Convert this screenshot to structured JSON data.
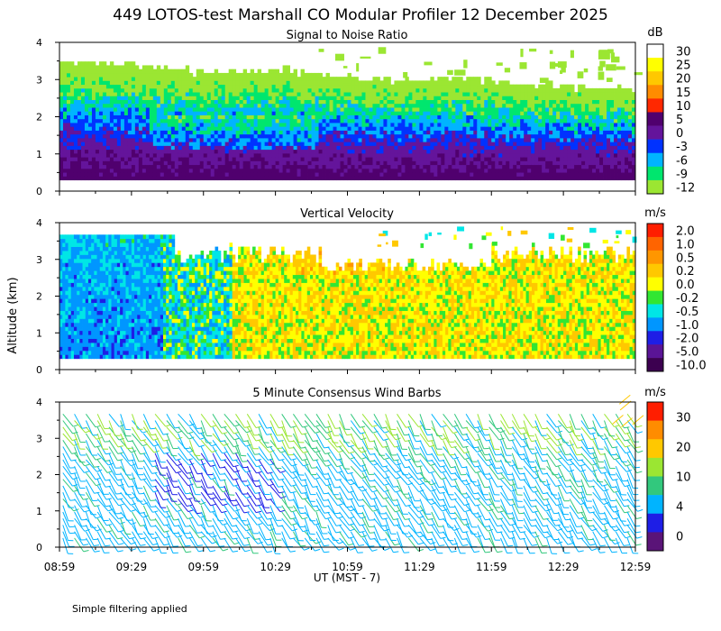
{
  "title": "449 LOTOS-test Marshall CO Modular Profiler 12 December 2025",
  "ylabel": "Altitude (km)",
  "xlabel": "UT  (MST - 7)",
  "footnote": "Simple filtering applied",
  "xticks": [
    "08:59",
    "09:29",
    "09:59",
    "10:29",
    "10:59",
    "11:29",
    "11:59",
    "12:29",
    "12:59"
  ],
  "yticks": [
    0,
    1,
    2,
    3,
    4
  ],
  "colors": {
    "background": "#ffffff",
    "axis": "#000000"
  },
  "chart_data": [
    {
      "type": "heatmap",
      "title": "Signal to Noise Ratio",
      "colorbar": {
        "unit": "dB",
        "labels": [
          "30",
          "25",
          "20",
          "15",
          "10",
          "5",
          "0",
          "-3",
          "-6",
          "-9",
          "-12"
        ],
        "colors": [
          "#ffffff",
          "#ffff00",
          "#ffc800",
          "#ff8c00",
          "#ff2800",
          "#50006e",
          "#64149b",
          "#0032ff",
          "#00b4ff",
          "#00e66e",
          "#9be632"
        ]
      },
      "x_range": [
        "08:59",
        "12:59"
      ],
      "ylim": [
        0,
        4
      ]
    },
    {
      "type": "heatmap",
      "title": "Vertical Velocity",
      "colorbar": {
        "unit": "m/s",
        "labels": [
          "2.0",
          "1.0",
          "0.5",
          "0.2",
          "0.0",
          "-0.2",
          "-0.5",
          "-1.0",
          "-2.0",
          "-5.0",
          "-10.0"
        ],
        "colors": [
          "#ff1e00",
          "#ff6400",
          "#ff9600",
          "#ffc800",
          "#ffff00",
          "#32e632",
          "#00e6e6",
          "#0096ff",
          "#1e1ee6",
          "#5a1496",
          "#3c0050"
        ]
      },
      "x_range": [
        "08:59",
        "12:59"
      ],
      "ylim": [
        0,
        4
      ]
    },
    {
      "type": "scatter",
      "title": "5 Minute Consensus Wind Barbs",
      "colorbar": {
        "unit": "m/s",
        "labels": [
          "30",
          "20",
          "10",
          "4",
          "0"
        ],
        "colors": [
          "#ff1e00",
          "#ff8c00",
          "#ffc800",
          "#9be632",
          "#32c87d",
          "#00b4ff",
          "#1e1ee6",
          "#5a1478"
        ]
      },
      "x_range": [
        "08:59",
        "12:59"
      ],
      "ylim": [
        0,
        4
      ]
    }
  ]
}
